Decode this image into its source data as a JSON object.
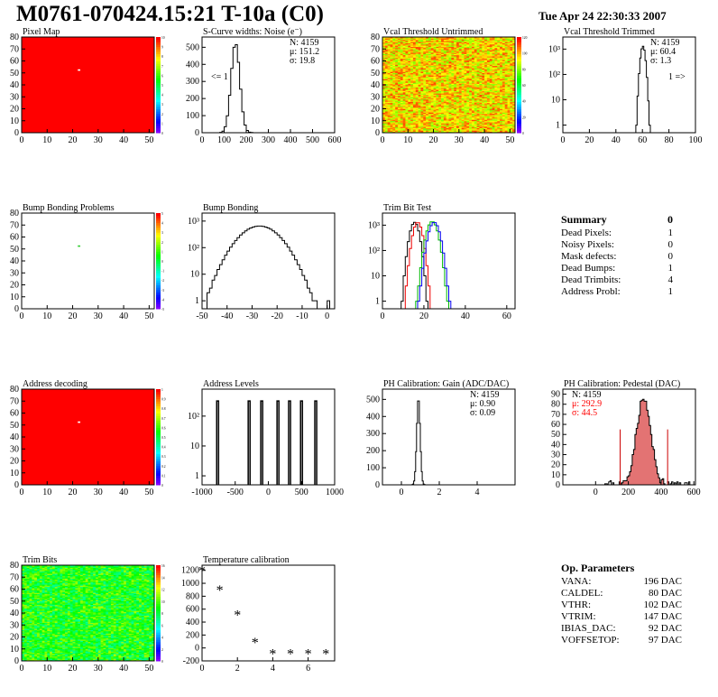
{
  "header": {
    "title": "M0761-070424.15:21 T-10a (C0)",
    "date": "Tue Apr 24 22:30:33 2007"
  },
  "chart_data": [
    {
      "type": "heatmap",
      "title": "Pixel Map",
      "x_ticks": [
        "0",
        "10",
        "20",
        "30",
        "40",
        "50"
      ],
      "y_ticks": [
        "0",
        "10",
        "20",
        "30",
        "40",
        "50",
        "60",
        "70",
        "80"
      ],
      "colorbar_ticks": [
        "0",
        "1",
        "2",
        "3",
        "4",
        "5",
        "6",
        "7",
        "8",
        "9",
        "10"
      ],
      "xlim": [
        0,
        52
      ],
      "ylim": [
        0,
        80
      ],
      "dominant_value": 10,
      "anomalies": [
        {
          "x": 22,
          "y": 52,
          "value": 0
        }
      ]
    },
    {
      "type": "histogram",
      "title": "S-Curve widths: Noise (e⁻)",
      "stats": {
        "N": "N: 4159",
        "mean": "μ: 151.2",
        "sigma": "σ: 19.8"
      },
      "annotation": "<= 1",
      "x_ticks": [
        "0",
        "100",
        "200",
        "300",
        "400",
        "500",
        "600"
      ],
      "y_ticks": [
        "0",
        "100",
        "200",
        "300",
        "400",
        "500"
      ],
      "xlim": [
        0,
        600
      ],
      "ylim": [
        0,
        560
      ],
      "mean": 151.2,
      "sigma": 19.8,
      "peak": 525
    },
    {
      "type": "heatmap",
      "title": "Vcal Threshold Untrimmed",
      "x_ticks": [
        "0",
        "10",
        "20",
        "30",
        "40",
        "50"
      ],
      "y_ticks": [
        "0",
        "10",
        "20",
        "30",
        "40",
        "50",
        "60",
        "70",
        "80"
      ],
      "colorbar_ticks": [
        "0",
        "20",
        "40",
        "60",
        "80",
        "100",
        "120"
      ],
      "xlim": [
        0,
        52
      ],
      "ylim": [
        0,
        80
      ]
    },
    {
      "type": "histogram",
      "title": "Vcal Threshold Trimmed",
      "stats": {
        "N": "N: 4159",
        "mean": "μ: 60.4",
        "sigma": "σ: 1.3"
      },
      "annotation": "1 =>",
      "x_ticks": [
        "0",
        "20",
        "40",
        "60",
        "80",
        "100"
      ],
      "y_ticks": [
        "1",
        "10",
        "10²",
        "10³"
      ],
      "xlim": [
        0,
        100
      ],
      "log_y": true,
      "mean": 60.4,
      "sigma": 1.3,
      "peak": 1300
    },
    {
      "type": "heatmap",
      "title": "Bump Bonding Problems",
      "x_ticks": [
        "0",
        "10",
        "20",
        "30",
        "40",
        "50"
      ],
      "y_ticks": [
        "0",
        "10",
        "20",
        "30",
        "40",
        "50",
        "60",
        "70",
        "80"
      ],
      "colorbar_ticks": [
        "-5",
        "-4",
        "-3",
        "-2",
        "-1",
        "0",
        "1",
        "2",
        "3",
        "4",
        "5"
      ],
      "xlim": [
        0,
        52
      ],
      "ylim": [
        0,
        80
      ],
      "anomalies": [
        {
          "x": 22,
          "y": 52,
          "value": 1
        }
      ]
    },
    {
      "type": "histogram",
      "title": "Bump Bonding",
      "x_ticks": [
        "-50",
        "-40",
        "-30",
        "-20",
        "-10",
        "0"
      ],
      "y_ticks": [
        "1",
        "10",
        "10²",
        "10³"
      ],
      "xlim": [
        -50,
        3
      ],
      "log_y": true,
      "mean": -27,
      "sigma": 6,
      "peak": 650
    },
    {
      "type": "histogram",
      "title": "Trim Bit Test",
      "x_ticks": [
        "0",
        "20",
        "40",
        "60"
      ],
      "y_ticks": [
        "1",
        "10",
        "10²",
        "10³"
      ],
      "xlim": [
        0,
        64
      ],
      "log_y": true,
      "series": [
        {
          "color": "#000000",
          "mean": 15.5,
          "sigma": 1.6,
          "peak": 1300
        },
        {
          "color": "#ee0000",
          "mean": 17.0,
          "sigma": 1.6,
          "peak": 1300
        },
        {
          "color": "#00bb00",
          "mean": 24.0,
          "sigma": 1.9,
          "peak": 1400
        },
        {
          "color": "#0000ee",
          "mean": 25.0,
          "sigma": 1.9,
          "peak": 1300
        }
      ]
    },
    {
      "type": "heatmap",
      "title": "Address decoding",
      "x_ticks": [
        "0",
        "10",
        "20",
        "30",
        "40",
        "50"
      ],
      "y_ticks": [
        "0",
        "10",
        "20",
        "30",
        "40",
        "50",
        "60",
        "70",
        "80"
      ],
      "colorbar_ticks": [
        "0",
        "0.1",
        "0.2",
        "0.3",
        "0.4",
        "0.5",
        "0.6",
        "0.7",
        "0.8",
        "0.9",
        "1"
      ],
      "xlim": [
        0,
        52
      ],
      "ylim": [
        0,
        80
      ],
      "dominant_value": 1,
      "anomalies": [
        {
          "x": 22,
          "y": 52,
          "value": 0
        }
      ]
    },
    {
      "type": "histogram",
      "title": "Address Levels",
      "x_ticks": [
        "-1000",
        "-500",
        "0",
        "500",
        "1000"
      ],
      "y_ticks": [
        "1",
        "10",
        "10²"
      ],
      "xlim": [
        -1000,
        1000
      ],
      "log_y": true,
      "peaks": [
        -765,
        -290,
        -100,
        145,
        320,
        500,
        715
      ],
      "peak_height": 320
    },
    {
      "type": "histogram",
      "title": "PH Calibration: Gain (ADC/DAC)",
      "stats": {
        "N": "N: 4159",
        "mean": "μ: 0.90",
        "sigma": "σ: 0.09"
      },
      "x_ticks": [
        "0",
        "2",
        "4"
      ],
      "y_ticks": [
        "0",
        "100",
        "200",
        "300",
        "400",
        "500"
      ],
      "xlim": [
        -1,
        6
      ],
      "ylim": [
        0,
        560
      ],
      "mean": 0.9,
      "sigma": 0.09,
      "peak": 510
    },
    {
      "type": "histogram",
      "title": "PH Calibration: Pedestal (DAC)",
      "stats": {
        "N": "N: 4159",
        "mean": "μ: 292.9",
        "sigma": "σ: 44.5"
      },
      "x_ticks": [
        "0",
        "200",
        "400",
        "600"
      ],
      "y_ticks": [
        "0",
        "10",
        "20",
        "30",
        "40",
        "50",
        "60",
        "70",
        "80",
        "90"
      ],
      "xlim": [
        -200,
        610
      ],
      "ylim": [
        0,
        95
      ],
      "mean": 292.9,
      "sigma": 44.5,
      "peak": 85,
      "cut_lines": [
        150,
        440
      ]
    },
    {
      "type": "heatmap",
      "title": "Trim Bits",
      "x_ticks": [
        "0",
        "10",
        "20",
        "30",
        "40",
        "50"
      ],
      "y_ticks": [
        "0",
        "10",
        "20",
        "30",
        "40",
        "50",
        "60",
        "70",
        "80"
      ],
      "colorbar_ticks": [
        "0",
        "2",
        "4",
        "6",
        "8",
        "10",
        "12",
        "14",
        "16"
      ],
      "xlim": [
        0,
        52
      ],
      "ylim": [
        0,
        80
      ]
    },
    {
      "type": "scatter",
      "title": "Temperature calibration",
      "marker": "*",
      "x": [
        0,
        1,
        2,
        3,
        4,
        5,
        6,
        7
      ],
      "y": [
        1200,
        900,
        520,
        90,
        -80,
        -80,
        -80,
        -80
      ],
      "x_ticks": [
        "0",
        "2",
        "4",
        "6"
      ],
      "y_ticks": [
        "-200",
        "0",
        "200",
        "400",
        "600",
        "800",
        "1000",
        "1200"
      ],
      "xlim": [
        0,
        7.5
      ],
      "ylim": [
        -200,
        1280
      ]
    }
  ],
  "summary": {
    "title": "Summary",
    "title_value": "0",
    "rows": [
      {
        "label": "Dead Pixels:",
        "value": "1"
      },
      {
        "label": "Noisy Pixels:",
        "value": "0"
      },
      {
        "label": "Mask defects:",
        "value": "0"
      },
      {
        "label": "Dead Bumps:",
        "value": "1"
      },
      {
        "label": "Dead Trimbits:",
        "value": "4"
      },
      {
        "label": "Address Probl:",
        "value": "1"
      }
    ]
  },
  "op_params": {
    "title": "Op. Parameters",
    "rows": [
      {
        "label": "VANA:",
        "value": "196 DAC"
      },
      {
        "label": "CALDEL:",
        "value": "80 DAC"
      },
      {
        "label": "VTHR:",
        "value": "102 DAC"
      },
      {
        "label": "VTRIM:",
        "value": "147 DAC"
      },
      {
        "label": "IBIAS_DAC:",
        "value": "92 DAC"
      },
      {
        "label": "VOFFSETOP:",
        "value": "97 DAC"
      }
    ]
  },
  "colors": {
    "heatmap_red": "#ff0000",
    "hist_line": "#000000",
    "pedestal_fill": "#cc0000",
    "pedestal_stats": "#ff0000"
  }
}
